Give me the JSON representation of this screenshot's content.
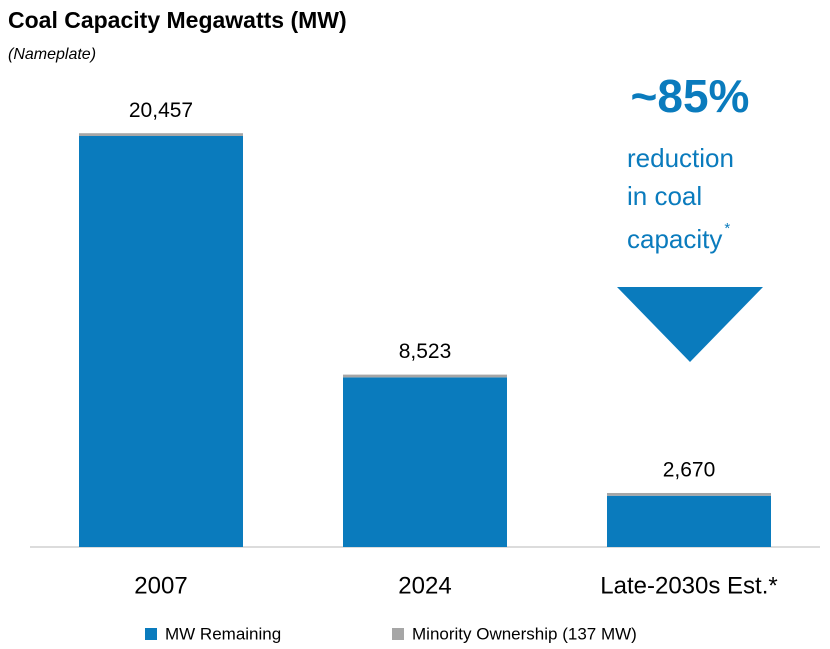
{
  "chart_data": {
    "type": "stacked_bar",
    "title": "Coal Capacity Megawatts (MW)",
    "subtitle": "(Nameplate)",
    "categories": [
      "2007",
      "2024",
      "Late-2030s Est.*"
    ],
    "series": [
      {
        "name": "MW Remaining",
        "color": "#0a7bbd",
        "values": [
          20320,
          8386,
          2533
        ]
      },
      {
        "name": "Minority Ownership (137 MW)",
        "color": "#a6a6a6",
        "values": [
          137,
          137,
          137
        ]
      }
    ],
    "totals": [
      20457,
      8523,
      2670
    ],
    "total_labels": [
      "20,457",
      "8,523",
      "2,670"
    ],
    "ylim": [
      0,
      22000
    ],
    "annotation": {
      "headline": "~85%",
      "lines": [
        "reduction",
        "in coal",
        "capacity"
      ],
      "footnote_mark": "*",
      "color": "#0a7bbd"
    }
  }
}
